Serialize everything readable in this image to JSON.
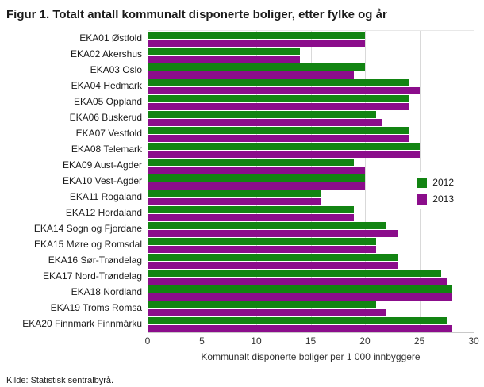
{
  "chart_data": {
    "type": "bar",
    "orientation": "horizontal",
    "title": "Figur 1. Totalt antall kommunalt disponerte boliger, etter fylke og år",
    "xlabel": "Kommunalt disponerte boliger per 1 000 innbyggere",
    "xlim": [
      0,
      30
    ],
    "xticks": [
      0,
      5,
      10,
      15,
      20,
      25,
      30
    ],
    "grid": true,
    "legend_position": "middle-right",
    "categories": [
      "EKA01 Østfold",
      "EKA02 Akershus",
      "EKA03 Oslo",
      "EKA04 Hedmark",
      "EKA05 Oppland",
      "EKA06 Buskerud",
      "EKA07 Vestfold",
      "EKA08 Telemark",
      "EKA09 Aust-Agder",
      "EKA10 Vest-Agder",
      "EKA11 Rogaland",
      "EKA12 Hordaland",
      "EKA14 Sogn og Fjordane",
      "EKA15 Møre og Romsdal",
      "EKA16 Sør-Trøndelag",
      "EKA17 Nord-Trøndelag",
      "EKA18 Nordland",
      "EKA19 Troms Romsa",
      "EKA20 Finnmark Finnmárku"
    ],
    "series": [
      {
        "name": "2012",
        "color": "#128412",
        "values": [
          20,
          14,
          20,
          24,
          24,
          21,
          24,
          25,
          19,
          20,
          16,
          19,
          22,
          21,
          23,
          27,
          28,
          21,
          27.5
        ]
      },
      {
        "name": "2013",
        "color": "#8b0d8b",
        "values": [
          20,
          14,
          19,
          25,
          24,
          21.5,
          24,
          25,
          20,
          20,
          16,
          19,
          23,
          21,
          23,
          27.5,
          28,
          22,
          28
        ]
      }
    ],
    "source": "Kilde: Statistisk sentralbyrå."
  }
}
